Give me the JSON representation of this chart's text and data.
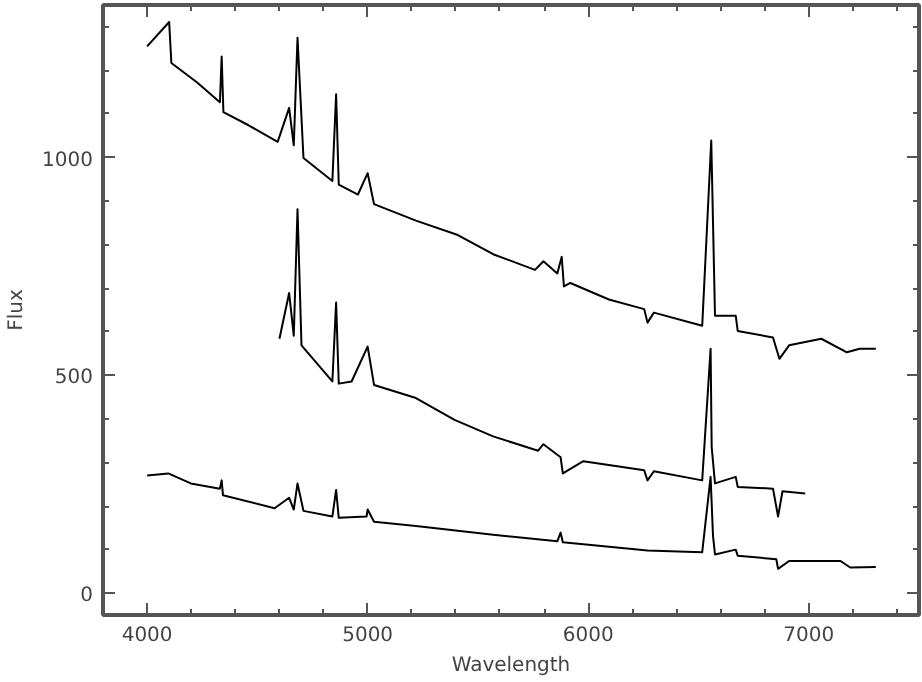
{
  "chart_data": {
    "type": "line",
    "xlabel": "Wavelength",
    "ylabel": "Flux",
    "xlim": [
      3800,
      7500
    ],
    "ylim": [
      -50,
      1350
    ],
    "xticks": [
      4000,
      5000,
      6000,
      7000
    ],
    "yticks": [
      0,
      500,
      1000
    ],
    "marker": "none",
    "line_style": "solid",
    "series": [
      {
        "color": "#000000",
        "x": [
          4000,
          4100,
          4110,
          4227,
          4330,
          4338,
          4346,
          4460,
          4592,
          4644,
          4665,
          4682,
          4709,
          4840,
          4857,
          4869,
          4956,
          5000,
          5029,
          5219,
          5409,
          5569,
          5759,
          5797,
          5860,
          5880,
          5890,
          5919,
          6094,
          6254,
          6269,
          6298,
          6517,
          6558,
          6575,
          6669,
          6678,
          6838,
          6867,
          6911,
          7057,
          7173,
          7231,
          7304
        ],
        "values": [
          1255,
          1311,
          1217,
          1172,
          1127,
          1232,
          1104,
          1074,
          1036,
          1114,
          1028,
          1275,
          999,
          946,
          1145,
          938,
          915,
          964,
          893,
          855,
          822,
          778,
          742,
          762,
          734,
          772,
          704,
          712,
          674,
          652,
          621,
          644,
          614,
          1039,
          637,
          637,
          602,
          587,
          538,
          569,
          584,
          553,
          561,
          561
        ]
      },
      {
        "color": "#000000",
        "x": [
          4600,
          4644,
          4665,
          4682,
          4700,
          4840,
          4857,
          4869,
          4927,
          5000,
          5029,
          5219,
          5394,
          5569,
          5773,
          5797,
          5875,
          5885,
          5978,
          6254,
          6269,
          6298,
          6517,
          6555,
          6560,
          6575,
          6669,
          6678,
          6838,
          6861,
          6881,
          6984
        ],
        "values": [
          584,
          689,
          591,
          881,
          569,
          486,
          667,
          481,
          486,
          566,
          478,
          448,
          398,
          360,
          327,
          342,
          312,
          275,
          303,
          282,
          259,
          280,
          259,
          561,
          335,
          252,
          267,
          244,
          240,
          176,
          234,
          229
        ]
      },
      {
        "color": "#000000",
        "x": [
          4000,
          4096,
          4198,
          4330,
          4338,
          4344,
          4578,
          4644,
          4665,
          4682,
          4709,
          4840,
          4857,
          4869,
          4995,
          5000,
          5029,
          5219,
          5569,
          5860,
          5875,
          5885,
          6269,
          6517,
          6555,
          6566,
          6575,
          6669,
          6678,
          6853,
          6861,
          6911,
          7144,
          7188,
          7304
        ],
        "values": [
          270,
          275,
          252,
          240,
          259,
          225,
          195,
          219,
          192,
          252,
          189,
          176,
          237,
          173,
          176,
          192,
          164,
          154,
          134,
          119,
          139,
          117,
          98,
          94,
          267,
          131,
          89,
          100,
          86,
          78,
          56,
          74,
          74,
          59,
          60
        ]
      }
    ]
  }
}
